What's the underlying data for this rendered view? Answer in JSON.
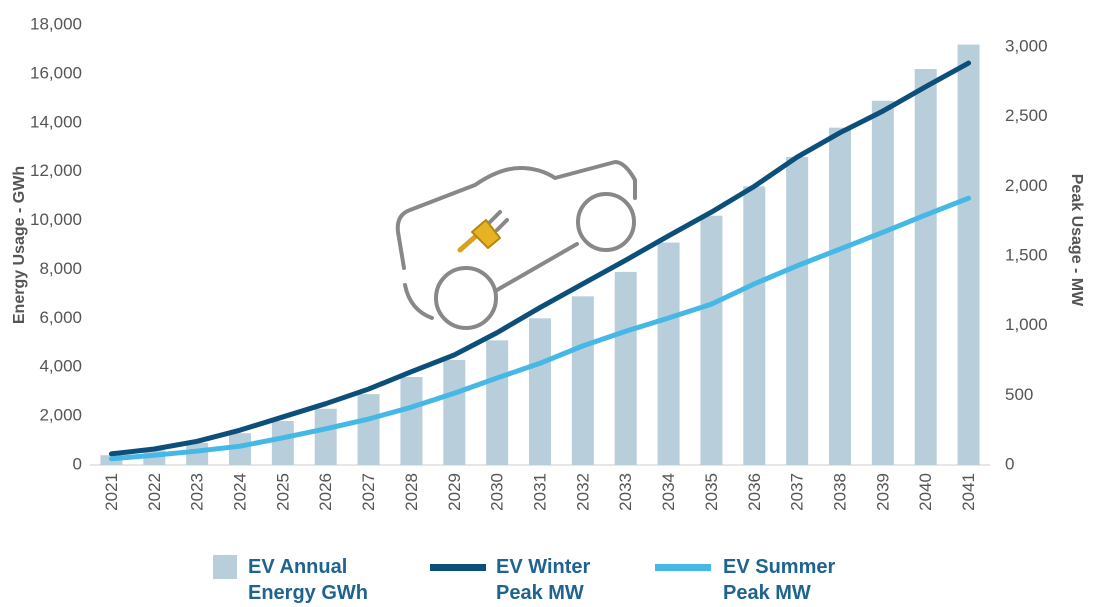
{
  "chart_data": {
    "type": "bar_line",
    "y_label": "Energy Usage - GWh",
    "y2_label": "Peak Usage - MW",
    "categories": [
      "2021",
      "2022",
      "2023",
      "2024",
      "2025",
      "2026",
      "2027",
      "2028",
      "2029",
      "2030",
      "2031",
      "2032",
      "2033",
      "2034",
      "2035",
      "2036",
      "2037",
      "2038",
      "2039",
      "2040",
      "2041"
    ],
    "series": [
      {
        "name": "EV Annual Energy GWh",
        "type": "bar",
        "color": "#b9cedb",
        "values": [
          400,
          600,
          900,
          1300,
          1800,
          2300,
          2900,
          3600,
          4300,
          5100,
          6000,
          6900,
          7900,
          9100,
          10200,
          11400,
          12600,
          13800,
          14900,
          16200,
          17200
        ]
      },
      {
        "name": "EV Winter Peak MW",
        "type": "line",
        "axis": "y2",
        "color": "#0b4f7a",
        "values": [
          80,
          115,
          170,
          250,
          345,
          440,
          545,
          670,
          790,
          950,
          1130,
          1300,
          1470,
          1645,
          1815,
          2000,
          2210,
          2385,
          2540,
          2715,
          2885
        ]
      },
      {
        "name": "EV Summer Peak MW",
        "type": "line",
        "axis": "y2",
        "color": "#45b8e6",
        "values": [
          45,
          70,
          100,
          135,
          195,
          260,
          330,
          415,
          515,
          625,
          730,
          855,
          960,
          1055,
          1155,
          1300,
          1430,
          1550,
          1670,
          1795,
          1915
        ]
      }
    ],
    "ylim": [
      0,
      18000
    ],
    "yticks": [
      0,
      {
        "value": 2000,
        "label": "2,000"
      },
      {
        "value": 4000,
        "label": "4,000"
      },
      {
        "value": 6000,
        "label": "6,000"
      },
      {
        "value": 8000,
        "label": "8,000"
      },
      {
        "value": 10000,
        "label": "10,000"
      },
      {
        "value": 12000,
        "label": "12,000"
      },
      {
        "value": 14000,
        "label": "14,000"
      },
      {
        "value": 16000,
        "label": "16,000"
      },
      {
        "value": 18000,
        "label": "18,000"
      }
    ],
    "y2lim": [
      0,
      3158
    ],
    "y2ticks": [
      0,
      500,
      {
        "value": 1000,
        "label": "1,000"
      },
      {
        "value": 1500,
        "label": "1,500"
      },
      {
        "value": 2000,
        "label": "2,000"
      },
      {
        "value": 2500,
        "label": "2,500"
      },
      {
        "value": 3000,
        "label": "3,000"
      }
    ],
    "grid": false
  }
}
